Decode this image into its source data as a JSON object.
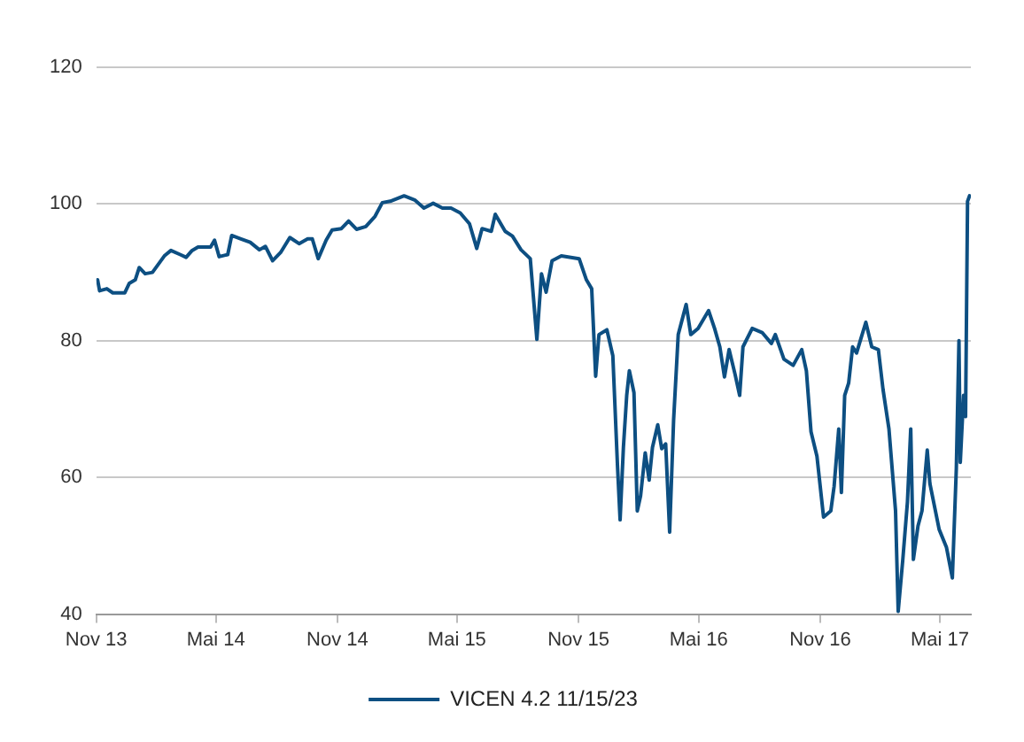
{
  "chart_data": {
    "type": "line",
    "xlim": [
      "2013-11-01",
      "2017-06-17"
    ],
    "xticks": [
      {
        "value": "2013-11-01",
        "label": "Nov 13"
      },
      {
        "value": "2014-05-01",
        "label": "Mai 14"
      },
      {
        "value": "2014-11-01",
        "label": "Nov 14"
      },
      {
        "value": "2015-05-01",
        "label": "Mai 15"
      },
      {
        "value": "2015-11-01",
        "label": "Nov 15"
      },
      {
        "value": "2016-05-01",
        "label": "Mai 16"
      },
      {
        "value": "2016-11-01",
        "label": "Nov 16"
      },
      {
        "value": "2017-05-01",
        "label": "Mai 17"
      }
    ],
    "ylim": [
      40,
      120
    ],
    "yticks": [
      40,
      60,
      80,
      100,
      120
    ],
    "grid": "y",
    "legend": "bottom",
    "marker": "none",
    "line_style": "solid",
    "x": [
      "2013-11-03",
      "2013-11-06",
      "2013-11-17",
      "2013-11-26",
      "2013-12-14",
      "2013-12-21",
      "2013-12-30",
      "2014-01-05",
      "2014-01-14",
      "2014-01-25",
      "2014-02-12",
      "2014-02-22",
      "2014-03-08",
      "2014-03-17",
      "2014-03-26",
      "2014-04-04",
      "2014-04-23",
      "2014-04-29",
      "2014-05-06",
      "2014-05-19",
      "2014-05-25",
      "2014-06-08",
      "2014-06-22",
      "2014-07-06",
      "2014-07-15",
      "2014-07-26",
      "2014-08-07",
      "2014-08-21",
      "2014-09-04",
      "2014-09-17",
      "2014-09-24",
      "2014-10-03",
      "2014-10-15",
      "2014-10-24",
      "2014-11-07",
      "2014-11-18",
      "2014-11-30",
      "2014-12-14",
      "2014-12-28",
      "2015-01-08",
      "2015-01-20",
      "2015-02-10",
      "2015-02-26",
      "2015-03-12",
      "2015-03-26",
      "2015-04-09",
      "2015-04-22",
      "2015-05-06",
      "2015-05-20",
      "2015-05-31",
      "2015-06-08",
      "2015-06-22",
      "2015-06-28",
      "2015-07-13",
      "2015-07-24",
      "2015-08-06",
      "2015-08-20",
      "2015-08-30",
      "2015-09-06",
      "2015-09-13",
      "2015-09-22",
      "2015-10-06",
      "2015-11-02",
      "2015-11-13",
      "2015-11-21",
      "2015-11-27",
      "2015-12-02",
      "2015-12-14",
      "2015-12-23",
      "2015-12-30",
      "2016-01-03",
      "2016-01-08",
      "2016-01-13",
      "2016-01-17",
      "2016-01-24",
      "2016-01-29",
      "2016-02-03",
      "2016-02-10",
      "2016-02-16",
      "2016-02-21",
      "2016-02-29",
      "2016-03-06",
      "2016-03-12",
      "2016-03-18",
      "2016-03-24",
      "2016-03-31",
      "2016-04-12",
      "2016-04-19",
      "2016-04-30",
      "2016-05-16",
      "2016-05-25",
      "2016-06-02",
      "2016-06-09",
      "2016-06-16",
      "2016-06-25",
      "2016-07-02",
      "2016-07-07",
      "2016-07-21",
      "2016-08-05",
      "2016-08-19",
      "2016-08-25",
      "2016-09-07",
      "2016-09-21",
      "2016-10-04",
      "2016-10-11",
      "2016-10-18",
      "2016-10-27",
      "2016-11-06",
      "2016-11-17",
      "2016-11-22",
      "2016-11-29",
      "2016-12-03",
      "2016-12-08",
      "2016-12-14",
      "2016-12-20",
      "2016-12-26",
      "2017-01-09",
      "2017-01-18",
      "2017-01-28",
      "2017-02-04",
      "2017-02-13",
      "2017-02-23",
      "2017-02-27",
      "2017-03-06",
      "2017-03-13",
      "2017-03-18",
      "2017-03-22",
      "2017-03-29",
      "2017-04-04",
      "2017-04-12",
      "2017-04-16",
      "2017-04-30",
      "2017-05-11",
      "2017-05-20",
      "2017-05-26",
      "2017-05-30",
      "2017-06-01",
      "2017-06-06",
      "2017-06-09",
      "2017-06-12",
      "2017-06-15"
    ],
    "series": [
      {
        "name": "VICEN 4.2 11/15/23",
        "color": "#0d4f82",
        "values": [
          88.9,
          87.3,
          87.6,
          87,
          87,
          88.4,
          88.9,
          90.7,
          89.8,
          90,
          92.4,
          93.2,
          92.6,
          92.2,
          93.2,
          93.7,
          93.7,
          94.7,
          92.3,
          92.6,
          95.4,
          94.9,
          94.4,
          93.3,
          93.8,
          91.7,
          92.9,
          95.1,
          94.2,
          94.9,
          94.9,
          92,
          94.7,
          96.2,
          96.4,
          97.5,
          96.3,
          96.7,
          98.2,
          100.2,
          100.4,
          101.2,
          100.6,
          99.4,
          100.1,
          99.4,
          99.4,
          98.7,
          97.1,
          93.5,
          96.4,
          96,
          98.5,
          96,
          95.3,
          93.3,
          92,
          80.2,
          89.8,
          87.1,
          91.7,
          92.4,
          92,
          88.9,
          87.6,
          74.8,
          80.9,
          81.6,
          77.8,
          61.8,
          53.8,
          64.4,
          72,
          75.6,
          72.4,
          55.1,
          57.3,
          63.6,
          59.6,
          64.4,
          67.7,
          64.2,
          64.9,
          52,
          68.4,
          80.9,
          85.3,
          80.9,
          81.8,
          84.4,
          81.8,
          79.1,
          74.7,
          78.7,
          75.1,
          72,
          79.1,
          81.8,
          81.2,
          79.6,
          80.9,
          77.3,
          76.4,
          78.7,
          75.6,
          66.7,
          63.1,
          54.2,
          55.1,
          58.7,
          67.1,
          57.8,
          72,
          73.8,
          79.1,
          78.2,
          82.7,
          79.1,
          78.7,
          72.9,
          67.1,
          55.1,
          40.4,
          48,
          56.4,
          67.1,
          48,
          52.9,
          55.1,
          64,
          59.1,
          52.4,
          49.8,
          45.3,
          61.3,
          80,
          62.2,
          72,
          68.9,
          100.4,
          101.2
        ]
      }
    ]
  }
}
